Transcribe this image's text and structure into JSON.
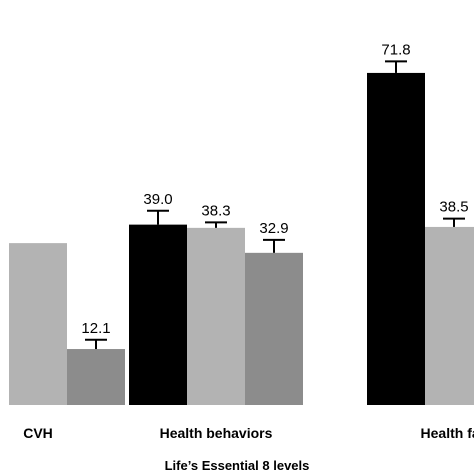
{
  "chart_data": {
    "type": "bar",
    "title": "",
    "xlabel": "Life’s Essential 8 levels",
    "ylabel": "",
    "categories": [
      "CVH",
      "Health behaviors",
      "Health fac"
    ],
    "ylim": [
      0,
      80
    ],
    "grid": false,
    "legend": "none",
    "series": [
      {
        "color": "#000000",
        "values": [
          null,
          39.0,
          71.8
        ],
        "errors": [
          null,
          3.0,
          2.5
        ],
        "labels": [
          "",
          "39.0",
          "71.8"
        ]
      },
      {
        "color": "#b3b3b3",
        "values": [
          35.0,
          38.3,
          38.5
        ],
        "errors": [
          null,
          1.2,
          1.8
        ],
        "labels": [
          "",
          "38.3",
          "38.5"
        ]
      },
      {
        "color": "#8c8c8c",
        "values": [
          12.1,
          32.9,
          null
        ],
        "errors": [
          2.0,
          2.8,
          null
        ],
        "labels": [
          "12.1",
          "32.9",
          ""
        ]
      }
    ]
  }
}
